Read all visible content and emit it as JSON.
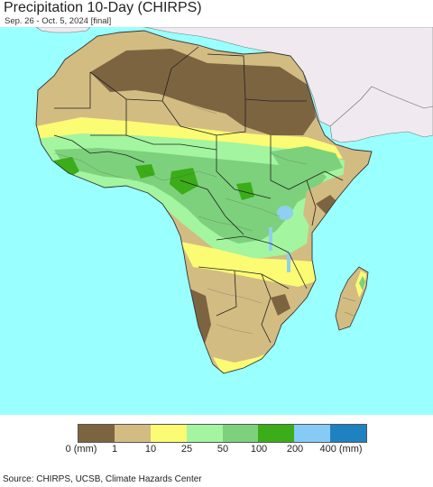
{
  "title": "Precipitation 10-Day (CHIRPS)",
  "subtitle": "Sep. 26 - Oct. 5, 2024 [final]",
  "colors": {
    "ocean": "#99ffff",
    "non_africa_land": "#f0eaf0",
    "lake": "#8fd0f0"
  },
  "legend": {
    "colors": [
      "#7d6441",
      "#d3bc82",
      "#fbfb74",
      "#a3f59f",
      "#7dd17c",
      "#3aad19",
      "#86cbf5",
      "#1f82c0"
    ],
    "labels": [
      "0 (mm)",
      "1",
      "10",
      "25",
      "50",
      "100",
      "200",
      "400 (mm)"
    ]
  },
  "source": "Source: CHIRPS, UCSB, Climate Hazards Center"
}
